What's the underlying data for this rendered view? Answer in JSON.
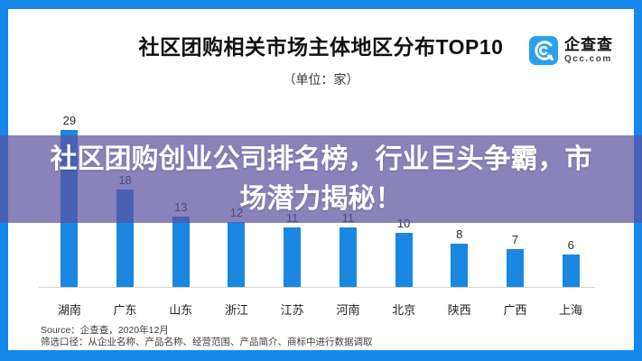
{
  "header": {
    "title": "社区团购相关市场主体地区分布TOP10",
    "subtitle": "（单位：家）",
    "logo": {
      "name": "企查查",
      "domain": "Qcc.com",
      "icon": "qcc-spiral-icon",
      "icon_color": "#2ba0f0"
    }
  },
  "overlay": {
    "text": "社区团购创业公司排名榜，行业巨头争霸，市场潜力揭秘！",
    "background_color": "#5B52A1",
    "text_color": "#ffffff"
  },
  "chart_data": {
    "type": "bar",
    "title": "社区团购相关市场主体地区分布TOP10",
    "unit_label": "（单位：家）",
    "categories": [
      "湖南",
      "广东",
      "山东",
      "浙江",
      "江苏",
      "河南",
      "北京",
      "陕西",
      "广西",
      "上海"
    ],
    "values": [
      29,
      18,
      13,
      12,
      11,
      11,
      10,
      8,
      7,
      6
    ],
    "bar_color": "#1b87e0",
    "value_labels_shown": true,
    "xlabel": "",
    "ylabel": "",
    "ylim": [
      0,
      30
    ],
    "grid": false,
    "legend": false
  },
  "footer": {
    "source_line": "Source：企查查，2020年12月",
    "filter_line": "筛选口径：从企业名称、产品名称、经营范围、产品简介、商标中进行数据调取"
  },
  "frame_color": "#1787ec"
}
